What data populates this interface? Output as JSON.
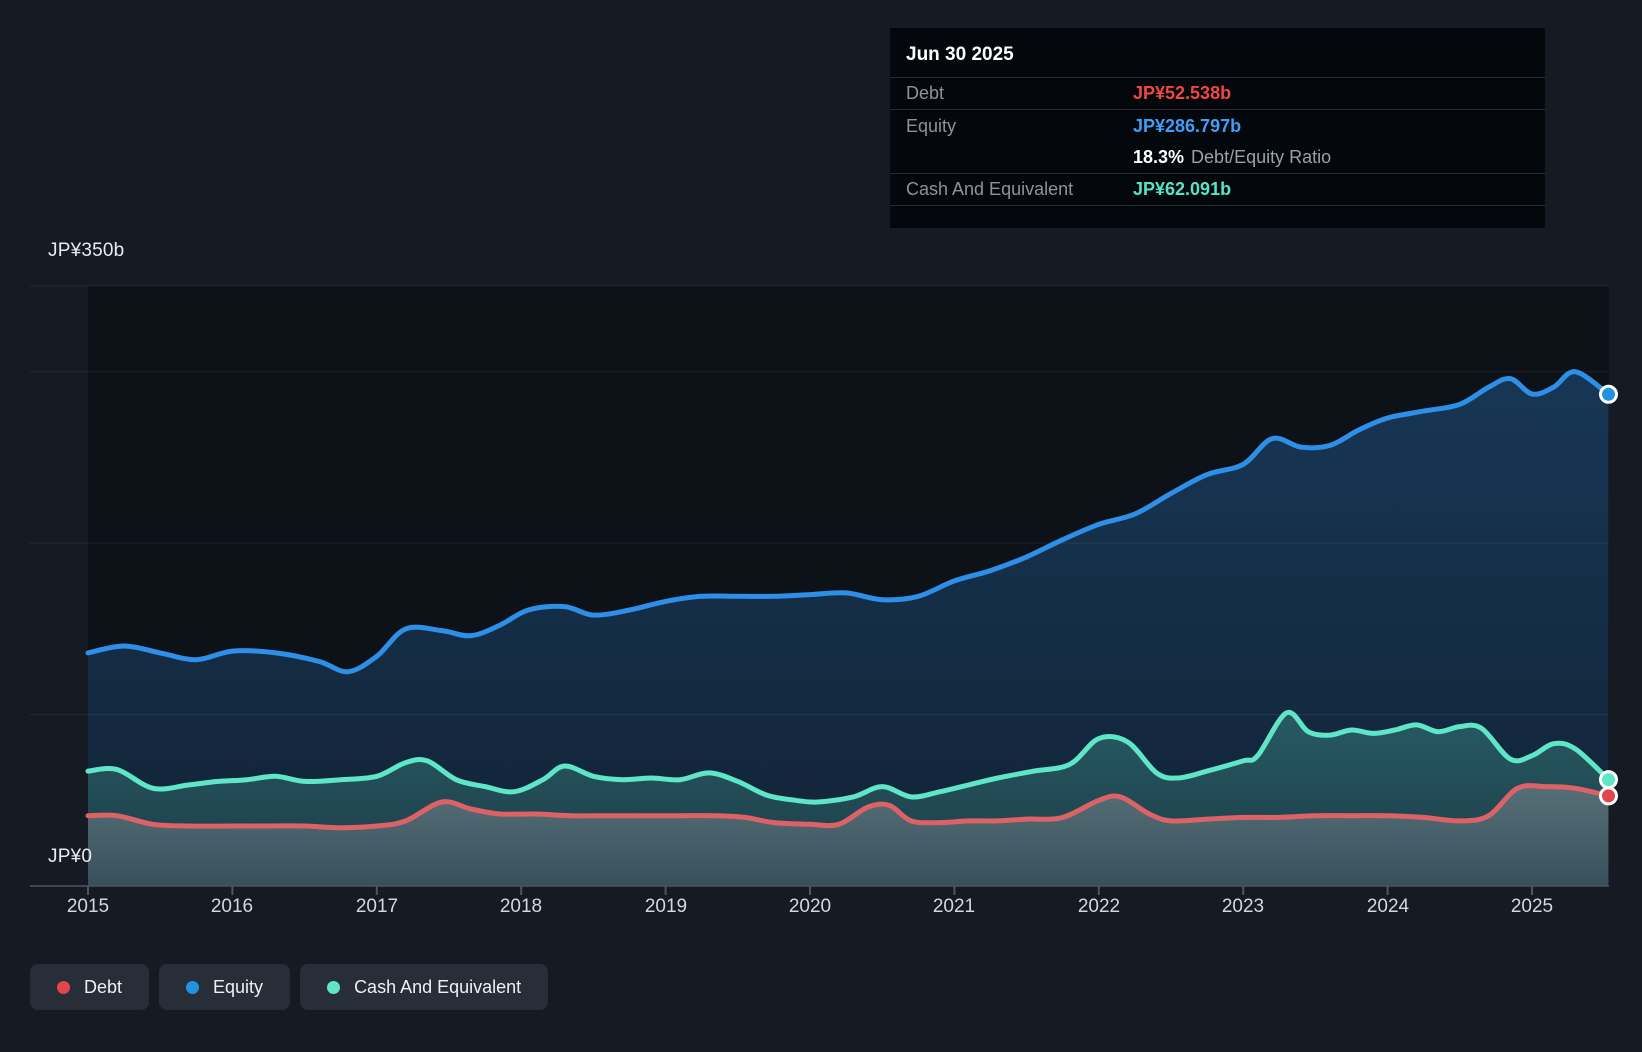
{
  "tooltip": {
    "date": "Jun 30 2025",
    "debt_label": "Debt",
    "debt_value": "JP¥52.538b",
    "equity_label": "Equity",
    "equity_value": "JP¥286.797b",
    "ratio_value": "18.3%",
    "ratio_label": "Debt/Equity Ratio",
    "cash_label": "Cash And Equivalent",
    "cash_value": "JP¥62.091b",
    "colors": {
      "debt": "#ef4840",
      "equity": "#3f9ef7",
      "cash": "#57e4c6"
    }
  },
  "axis": {
    "y_top": "JP¥350b",
    "y_zero": "JP¥0",
    "x_ticks": [
      "2015",
      "2016",
      "2017",
      "2018",
      "2019",
      "2020",
      "2021",
      "2022",
      "2023",
      "2024",
      "2025"
    ]
  },
  "legend": {
    "items": [
      {
        "label": "Debt",
        "color": "#e2464b"
      },
      {
        "label": "Equity",
        "color": "#2191e2"
      },
      {
        "label": "Cash And Equivalent",
        "color": "#5fe5c7"
      }
    ]
  },
  "chart_data": {
    "type": "area",
    "unit": "JP¥ billions",
    "ylim": [
      0,
      350
    ],
    "xlim": [
      2015,
      2025.53
    ],
    "gridline_values": [
      100,
      200,
      300,
      350
    ],
    "x_axis_years": [
      2015,
      2016,
      2017,
      2018,
      2019,
      2020,
      2021,
      2022,
      2023,
      2024,
      2025
    ],
    "legend_position": "bottom-left",
    "last_date": "Jun 30 2025",
    "last_values": {
      "Debt": 52.538,
      "Equity": 286.797,
      "Cash And Equivalent": 62.091,
      "debt_equity_ratio_pct": 18.3
    },
    "series": [
      {
        "name": "Equity",
        "color": "#2e8fe8",
        "marker_color": "#2191e2",
        "fill_color": "#2f8fe5",
        "fill_opacity_top": 0.3,
        "fill_opacity_bottom": 0.14,
        "points": [
          [
            2015.0,
            136
          ],
          [
            2015.25,
            140
          ],
          [
            2015.5,
            136
          ],
          [
            2015.75,
            132
          ],
          [
            2016.0,
            137
          ],
          [
            2016.3,
            136
          ],
          [
            2016.6,
            131
          ],
          [
            2016.8,
            125
          ],
          [
            2017.0,
            134
          ],
          [
            2017.2,
            150
          ],
          [
            2017.45,
            149
          ],
          [
            2017.65,
            146
          ],
          [
            2017.85,
            152
          ],
          [
            2018.05,
            161
          ],
          [
            2018.3,
            163
          ],
          [
            2018.5,
            158
          ],
          [
            2018.75,
            161
          ],
          [
            2019.0,
            166
          ],
          [
            2019.25,
            169
          ],
          [
            2019.5,
            169
          ],
          [
            2019.75,
            169
          ],
          [
            2020.0,
            170
          ],
          [
            2020.25,
            171
          ],
          [
            2020.5,
            167
          ],
          [
            2020.75,
            169
          ],
          [
            2021.0,
            178
          ],
          [
            2021.25,
            184
          ],
          [
            2021.5,
            192
          ],
          [
            2021.75,
            202
          ],
          [
            2022.0,
            211
          ],
          [
            2022.25,
            217
          ],
          [
            2022.5,
            229
          ],
          [
            2022.75,
            240
          ],
          [
            2023.0,
            246
          ],
          [
            2023.2,
            261
          ],
          [
            2023.4,
            256
          ],
          [
            2023.6,
            257
          ],
          [
            2023.8,
            266
          ],
          [
            2024.0,
            273
          ],
          [
            2024.25,
            277
          ],
          [
            2024.5,
            281
          ],
          [
            2024.7,
            291
          ],
          [
            2024.85,
            296
          ],
          [
            2025.0,
            287
          ],
          [
            2025.15,
            291
          ],
          [
            2025.3,
            300
          ],
          [
            2025.53,
            286.797
          ]
        ]
      },
      {
        "name": "Cash And Equivalent",
        "color": "#5fe5c7",
        "marker_color": "#5fe5c7",
        "fill_color": "#5fe5c7",
        "fill_opacity_top": 0.26,
        "fill_opacity_bottom": 0.12,
        "points": [
          [
            2015.0,
            67
          ],
          [
            2015.2,
            68
          ],
          [
            2015.45,
            57
          ],
          [
            2015.7,
            59
          ],
          [
            2015.9,
            61
          ],
          [
            2016.1,
            62
          ],
          [
            2016.3,
            64
          ],
          [
            2016.5,
            61
          ],
          [
            2016.75,
            62
          ],
          [
            2017.0,
            64
          ],
          [
            2017.2,
            72
          ],
          [
            2017.35,
            73
          ],
          [
            2017.55,
            62
          ],
          [
            2017.75,
            58
          ],
          [
            2017.95,
            55
          ],
          [
            2018.15,
            62
          ],
          [
            2018.3,
            70
          ],
          [
            2018.5,
            64
          ],
          [
            2018.7,
            62
          ],
          [
            2018.9,
            63
          ],
          [
            2019.1,
            62
          ],
          [
            2019.3,
            66
          ],
          [
            2019.5,
            61
          ],
          [
            2019.7,
            53
          ],
          [
            2019.9,
            50
          ],
          [
            2020.05,
            49
          ],
          [
            2020.3,
            52
          ],
          [
            2020.5,
            58
          ],
          [
            2020.7,
            52
          ],
          [
            2020.9,
            55
          ],
          [
            2021.1,
            59
          ],
          [
            2021.3,
            63
          ],
          [
            2021.55,
            67
          ],
          [
            2021.8,
            71
          ],
          [
            2022.0,
            86
          ],
          [
            2022.2,
            84
          ],
          [
            2022.4,
            66
          ],
          [
            2022.55,
            63
          ],
          [
            2022.75,
            67
          ],
          [
            2023.0,
            73
          ],
          [
            2023.1,
            76
          ],
          [
            2023.3,
            101
          ],
          [
            2023.45,
            90
          ],
          [
            2023.6,
            88
          ],
          [
            2023.75,
            91
          ],
          [
            2023.9,
            89
          ],
          [
            2024.05,
            91
          ],
          [
            2024.2,
            94
          ],
          [
            2024.35,
            90
          ],
          [
            2024.5,
            93
          ],
          [
            2024.65,
            92
          ],
          [
            2024.85,
            74
          ],
          [
            2025.0,
            76
          ],
          [
            2025.15,
            83
          ],
          [
            2025.3,
            80
          ],
          [
            2025.53,
            62.091
          ]
        ]
      },
      {
        "name": "Debt",
        "color": "#dd6266",
        "marker_color": "#e2464b",
        "fill_color": "#898f96",
        "fill_opacity_top": 0.5,
        "fill_opacity_bottom": 0.25,
        "points": [
          [
            2015.0,
            41
          ],
          [
            2015.2,
            41
          ],
          [
            2015.45,
            36
          ],
          [
            2015.7,
            35
          ],
          [
            2016.0,
            35
          ],
          [
            2016.25,
            35
          ],
          [
            2016.5,
            35
          ],
          [
            2016.75,
            34
          ],
          [
            2017.0,
            35
          ],
          [
            2017.2,
            38
          ],
          [
            2017.45,
            49
          ],
          [
            2017.65,
            45
          ],
          [
            2017.85,
            42
          ],
          [
            2018.1,
            42
          ],
          [
            2018.35,
            41
          ],
          [
            2018.6,
            41
          ],
          [
            2018.85,
            41
          ],
          [
            2019.1,
            41
          ],
          [
            2019.35,
            41
          ],
          [
            2019.55,
            40
          ],
          [
            2019.75,
            37
          ],
          [
            2020.0,
            36
          ],
          [
            2020.2,
            36
          ],
          [
            2020.4,
            46
          ],
          [
            2020.55,
            47
          ],
          [
            2020.7,
            38
          ],
          [
            2020.9,
            37
          ],
          [
            2021.1,
            38
          ],
          [
            2021.3,
            38
          ],
          [
            2021.5,
            39
          ],
          [
            2021.75,
            40
          ],
          [
            2022.0,
            50
          ],
          [
            2022.15,
            52
          ],
          [
            2022.35,
            42
          ],
          [
            2022.5,
            38
          ],
          [
            2022.75,
            39
          ],
          [
            2023.0,
            40
          ],
          [
            2023.25,
            40
          ],
          [
            2023.5,
            41
          ],
          [
            2023.75,
            41
          ],
          [
            2024.0,
            41
          ],
          [
            2024.25,
            40
          ],
          [
            2024.5,
            38
          ],
          [
            2024.7,
            41
          ],
          [
            2024.9,
            57
          ],
          [
            2025.1,
            58
          ],
          [
            2025.3,
            57
          ],
          [
            2025.53,
            52.538
          ]
        ]
      }
    ]
  }
}
